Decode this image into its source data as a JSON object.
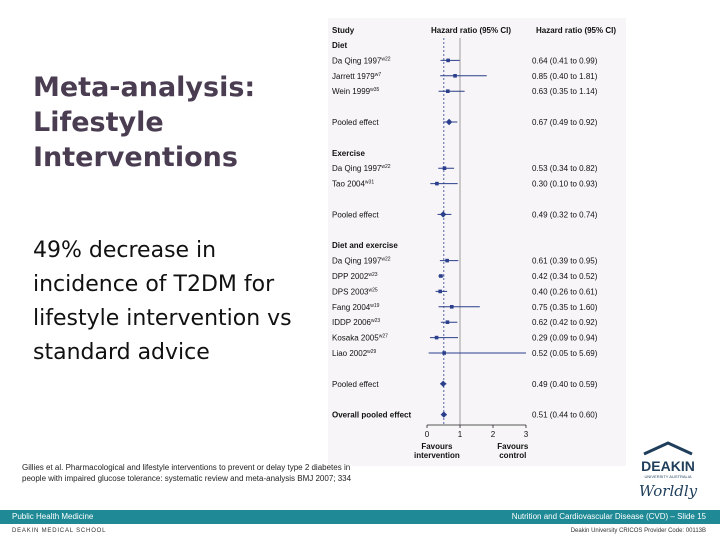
{
  "slide": {
    "title": "Meta-analysis: Lifestyle Interventions",
    "body": "49% decrease in incidence of T2DM for lifestyle intervention vs standard advice",
    "citation": "Gillies et al. Pharmacological and lifestyle interventions to prevent or delay type 2 diabetes in people with impaired glucose tolerance: systematic review and meta-analysis BMJ 2007; 334",
    "footer_left": "Public Health Medicine",
    "footer_right": "Nutrition and Cardiovascular Disease (CVD) – Slide 15",
    "school": "DEAKIN MEDICAL SCHOOL",
    "provider": "Deakin University CRICOS Provider Code: 00113B"
  },
  "logo": {
    "name": "DEAKIN",
    "subtitle": "UNIVERSITY AUSTRALIA",
    "tagline": "Worldly",
    "color": "#1f3e5b"
  },
  "chart_data": {
    "type": "forest",
    "header_study": "Study",
    "header_hr_plot": "Hazard ratio (95% CI)",
    "header_hr_text": "Hazard ratio (95% CI)",
    "xlim": [
      0,
      3
    ],
    "xticks": [
      0,
      1,
      2,
      3
    ],
    "xtick_labels": [
      "0",
      "1",
      "2",
      "3"
    ],
    "xlabel_left": "Favours intervention",
    "xlabel_right": "Favours control",
    "rows": [
      {
        "kind": "header",
        "label": "Diet"
      },
      {
        "kind": "study",
        "label": "Da Qing 1997",
        "ref": "w22",
        "hr": 0.64,
        "lo": 0.41,
        "hi": 0.99,
        "ci": "0.64 (0.41 to 0.99)"
      },
      {
        "kind": "study",
        "label": "Jarrett 1979",
        "ref": "w7",
        "hr": 0.85,
        "lo": 0.4,
        "hi": 1.81,
        "ci": "0.85 (0.40 to 1.81)"
      },
      {
        "kind": "study",
        "label": "Wein 1999",
        "ref": "w35",
        "hr": 0.63,
        "lo": 0.35,
        "hi": 1.14,
        "ci": "0.63 (0.35 to 1.14)"
      },
      {
        "kind": "blank"
      },
      {
        "kind": "pooled",
        "label": "Pooled effect",
        "hr": 0.67,
        "lo": 0.49,
        "hi": 0.92,
        "ci": "0.67 (0.49 to 0.92)"
      },
      {
        "kind": "blank"
      },
      {
        "kind": "header",
        "label": "Exercise"
      },
      {
        "kind": "study",
        "label": "Da Qing 1997",
        "ref": "w22",
        "hr": 0.53,
        "lo": 0.34,
        "hi": 0.82,
        "ci": "0.53 (0.34 to 0.82)"
      },
      {
        "kind": "study",
        "label": "Tao 2004",
        "ref": "w31",
        "hr": 0.3,
        "lo": 0.1,
        "hi": 0.93,
        "ci": "0.30 (0.10 to 0.93)"
      },
      {
        "kind": "blank"
      },
      {
        "kind": "pooled",
        "label": "Pooled effect",
        "hr": 0.49,
        "lo": 0.32,
        "hi": 0.74,
        "ci": "0.49 (0.32 to 0.74)"
      },
      {
        "kind": "blank"
      },
      {
        "kind": "header",
        "label": "Diet and exercise"
      },
      {
        "kind": "study",
        "label": "Da Qing 1997",
        "ref": "w22",
        "hr": 0.61,
        "lo": 0.39,
        "hi": 0.95,
        "ci": "0.61 (0.39 to 0.95)"
      },
      {
        "kind": "study",
        "label": "DPP 2002",
        "ref": "w23",
        "hr": 0.42,
        "lo": 0.34,
        "hi": 0.52,
        "ci": "0.42 (0.34 to 0.52)"
      },
      {
        "kind": "study",
        "label": "DPS 2003",
        "ref": "w25",
        "hr": 0.4,
        "lo": 0.26,
        "hi": 0.61,
        "ci": "0.40 (0.26 to 0.61)"
      },
      {
        "kind": "study",
        "label": "Fang 2004",
        "ref": "w19",
        "hr": 0.75,
        "lo": 0.35,
        "hi": 1.6,
        "ci": "0.75 (0.35 to 1.60)"
      },
      {
        "kind": "study",
        "label": "IDDP 2006",
        "ref": "w23",
        "hr": 0.62,
        "lo": 0.42,
        "hi": 0.92,
        "ci": "0.62 (0.42 to 0.92)"
      },
      {
        "kind": "study",
        "label": "Kosaka 2005",
        "ref": "w27",
        "hr": 0.29,
        "lo": 0.09,
        "hi": 0.94,
        "ci": "0.29 (0.09 to 0.94)"
      },
      {
        "kind": "study",
        "label": "Liao 2002",
        "ref": "w29",
        "hr": 0.52,
        "lo": 0.05,
        "hi": 5.69,
        "ci": "0.52 (0.05 to 5.69)"
      },
      {
        "kind": "blank"
      },
      {
        "kind": "pooled",
        "label": "Pooled effect",
        "hr": 0.49,
        "lo": 0.4,
        "hi": 0.59,
        "ci": "0.49 (0.40 to 0.59)"
      },
      {
        "kind": "blank"
      },
      {
        "kind": "overall",
        "label": "Overall pooled effect",
        "hr": 0.51,
        "lo": 0.44,
        "hi": 0.6,
        "ci": "0.51 (0.44 to 0.60)"
      }
    ]
  },
  "colors": {
    "forest_blue": "#2b3f8c",
    "teal": "#1f8a95",
    "title": "#4a3d52"
  }
}
